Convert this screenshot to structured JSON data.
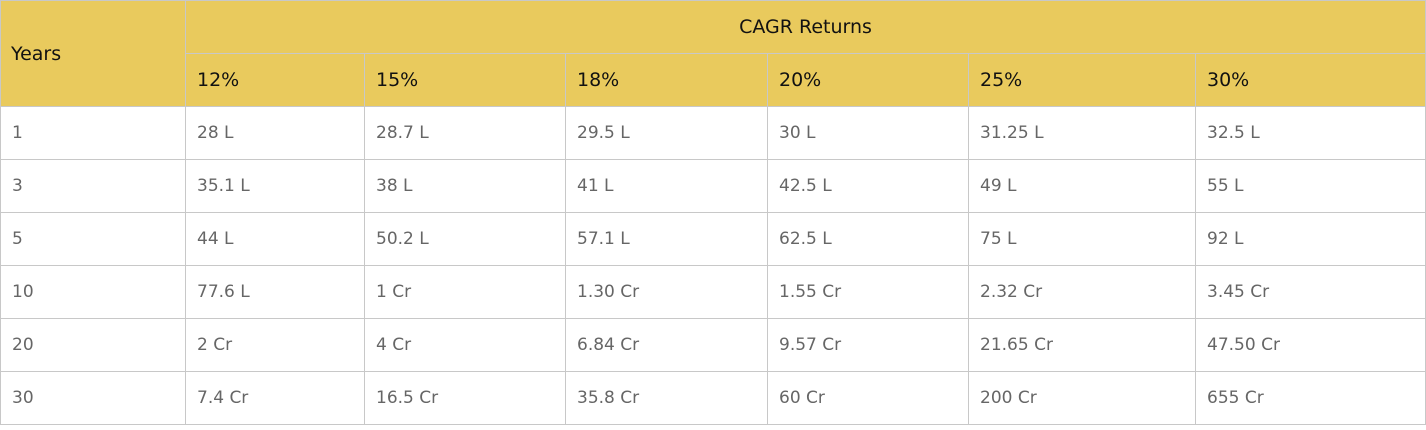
{
  "table": {
    "years_header": "Years",
    "group_header": "CAGR Returns",
    "rate_headers": [
      "12%",
      "15%",
      "18%",
      "20%",
      "25%",
      "30%"
    ],
    "rows": [
      {
        "year": "1",
        "cells": [
          "28 L",
          "28.7 L",
          "29.5 L",
          "30 L",
          "31.25 L",
          "32.5 L"
        ]
      },
      {
        "year": "3",
        "cells": [
          "35.1 L",
          "38 L",
          "41 L",
          "42.5 L",
          "49 L",
          "55 L"
        ]
      },
      {
        "year": "5",
        "cells": [
          "44 L",
          "50.2 L",
          "57.1 L",
          "62.5 L",
          "75 L",
          "92 L"
        ]
      },
      {
        "year": "10",
        "cells": [
          "77.6 L",
          "1 Cr",
          "1.30 Cr",
          "1.55 Cr",
          "2.32 Cr",
          "3.45 Cr"
        ]
      },
      {
        "year": "20",
        "cells": [
          "2 Cr",
          "4 Cr",
          "6.84 Cr",
          "9.57 Cr",
          "21.65 Cr",
          "47.50 Cr"
        ]
      },
      {
        "year": "30",
        "cells": [
          "7.4 Cr",
          "16.5 Cr",
          "35.8 Cr",
          "60 Cr",
          "200 Cr",
          "655 Cr"
        ]
      }
    ]
  }
}
